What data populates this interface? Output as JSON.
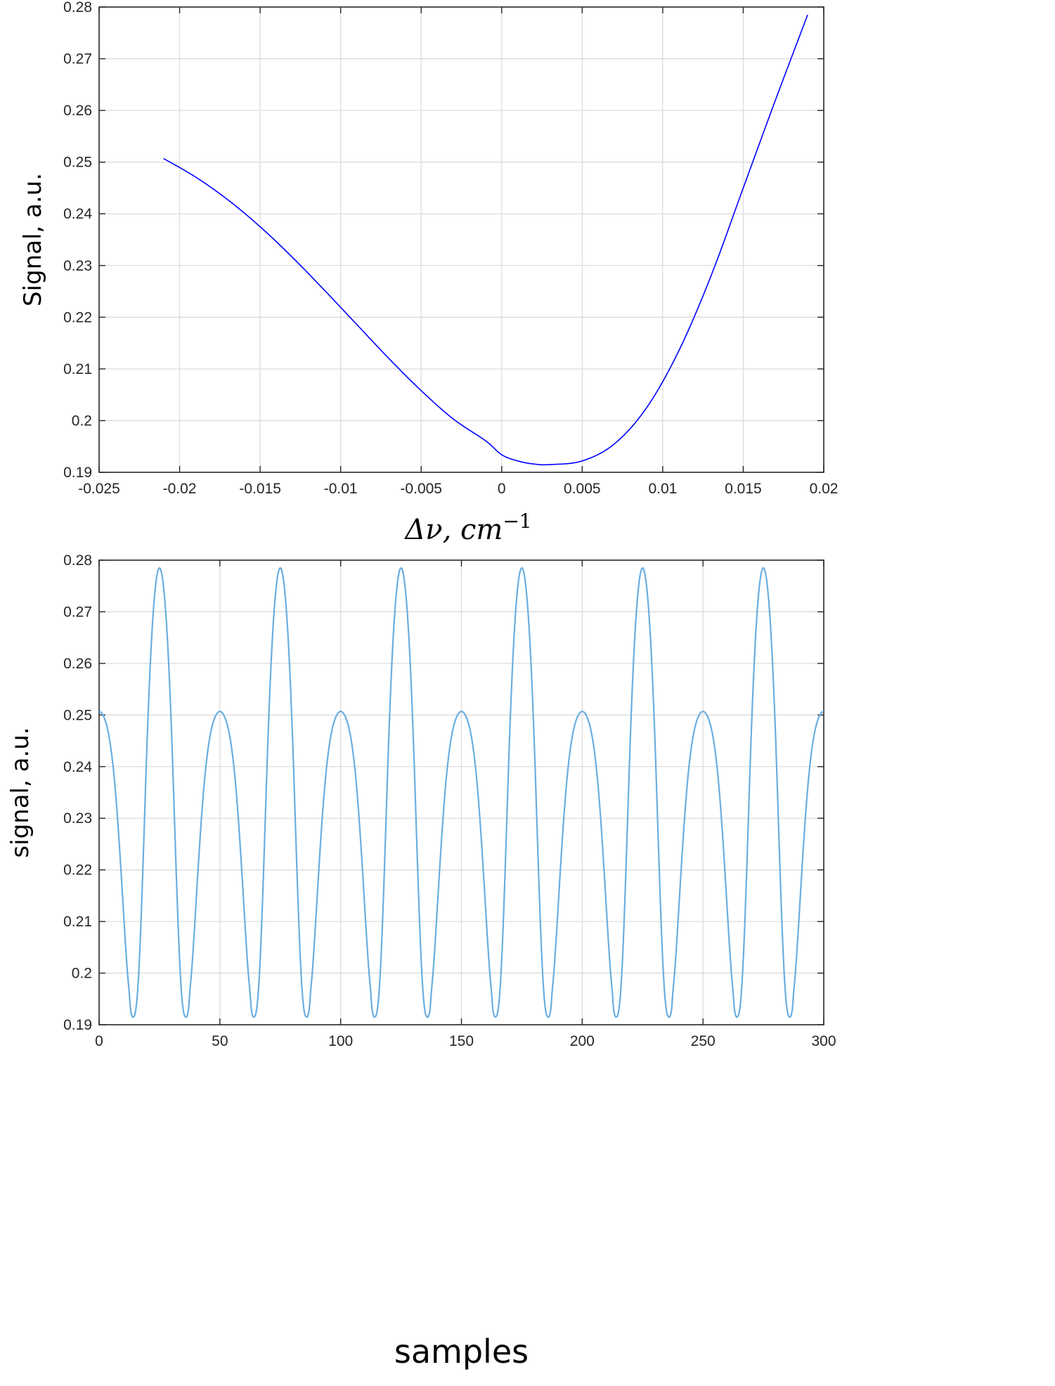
{
  "chart_data": [
    {
      "type": "line",
      "title": "",
      "xlabel": "Δν, cm⁻¹",
      "xlabel_parts": {
        "delta_nu": "Δν, cm",
        "exponent": "−1"
      },
      "ylabel": "Signal, a.u.",
      "xlim": [
        -0.025,
        0.02
      ],
      "ylim": [
        0.19,
        0.28
      ],
      "x_tick_labels": [
        "-0.025",
        "-0.02",
        "-0.015",
        "-0.01",
        "-0.005",
        "0",
        "0.005",
        "0.01",
        "0.015",
        "0.02"
      ],
      "y_tick_labels": [
        "0.19",
        "0.2",
        "0.21",
        "0.22",
        "0.23",
        "0.24",
        "0.25",
        "0.26",
        "0.27",
        "0.28"
      ],
      "grid": true,
      "line_color": "#0000ff",
      "series": [
        {
          "x": [
            -0.021,
            -0.019,
            -0.017,
            -0.015,
            -0.013,
            -0.011,
            -0.009,
            -0.007,
            -0.005,
            -0.003,
            -0.001,
            0.0,
            0.001,
            0.002,
            0.003,
            0.005,
            0.007,
            0.009,
            0.011,
            0.013,
            0.015,
            0.017,
            0.019
          ],
          "y": [
            0.2507,
            0.2471,
            0.2427,
            0.2375,
            0.2316,
            0.2252,
            0.2186,
            0.212,
            0.2058,
            0.2003,
            0.1961,
            0.1934,
            0.1922,
            0.1916,
            0.1915,
            0.1922,
            0.1955,
            0.2025,
            0.2135,
            0.228,
            0.245,
            0.262,
            0.2785
          ]
        }
      ]
    },
    {
      "type": "line",
      "title": "",
      "xlabel": "samples",
      "ylabel": "signal, a.u.",
      "xlim": [
        0,
        300
      ],
      "ylim": [
        0.19,
        0.28
      ],
      "x_tick_labels": [
        "0",
        "50",
        "100",
        "150",
        "200",
        "250",
        "300"
      ],
      "y_tick_labels": [
        "0.19",
        "0.2",
        "0.21",
        "0.22",
        "0.23",
        "0.24",
        "0.25",
        "0.26",
        "0.27",
        "0.28"
      ],
      "grid": true,
      "line_color": "#6aaee0",
      "period": 50,
      "description_note": "",
      "series": [
        {
          "x": [
            0,
            5,
            10,
            15,
            20,
            25,
            30,
            35,
            40,
            45,
            50,
            55,
            60,
            65,
            70,
            75,
            80,
            85,
            90,
            95,
            100,
            105,
            110,
            115,
            120,
            125,
            130,
            135,
            140,
            145,
            150,
            155,
            160,
            165,
            170,
            175,
            180,
            185,
            190,
            195,
            200,
            205,
            210,
            215,
            220,
            225,
            230,
            235,
            240,
            245,
            250,
            255,
            260,
            265,
            270,
            275,
            280,
            285,
            290,
            295,
            300
          ],
          "y": [
            0.2507,
            0.2313,
            0.2027,
            0.1915,
            0.215,
            0.2785,
            0.215,
            0.1915,
            0.2027,
            0.2313,
            0.2507,
            0.2313,
            0.2027,
            0.1915,
            0.215,
            0.2785,
            0.215,
            0.1915,
            0.2027,
            0.2313,
            0.2507,
            0.2313,
            0.2027,
            0.1915,
            0.215,
            0.2785,
            0.215,
            0.1915,
            0.2027,
            0.2313,
            0.2507,
            0.2313,
            0.2027,
            0.1915,
            0.215,
            0.2785,
            0.215,
            0.1915,
            0.2027,
            0.2313,
            0.2507,
            0.2313,
            0.2027,
            0.1915,
            0.215,
            0.2785,
            0.215,
            0.1915,
            0.2027,
            0.2313,
            0.2507,
            0.2313,
            0.2027,
            0.1915,
            0.215,
            0.2785,
            0.215,
            0.1915,
            0.2027,
            0.2313,
            0.2507
          ]
        }
      ]
    }
  ]
}
